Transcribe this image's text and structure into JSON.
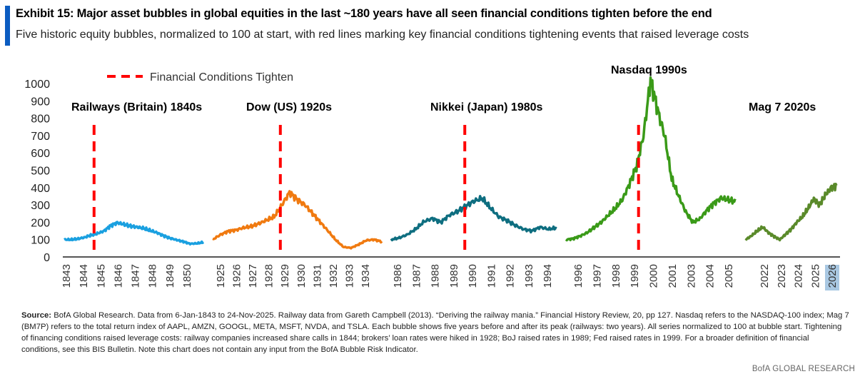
{
  "header": {
    "title": "Exhibit 15: Major asset bubbles in global equities in the last ~180 years have all seen financial conditions tighten before the end",
    "subtitle": "Five historic equity bubbles, normalized to 100 at start, with red lines marking key financial conditions tightening events that raised leverage costs"
  },
  "footer": {
    "source_label": "Source:",
    "source_text": " BofA Global Research. Data from 6-Jan-1843 to 24-Nov-2025. Railway data from Gareth Campbell (2013). “Deriving the railway mania.” Financial History Review, 20, pp 127. Nasdaq refers to the NASDAQ-100 index; Mag 7 (BM7P) refers to the total return index of AAPL, AMZN, GOOGL, META, MSFT, NVDA, and TSLA. Each bubble shows five years before and after its peak (railways: two years). All series normalized to 100 at bubble start. Tightening of financing conditions raised leverage costs: railway companies increased share calls in 1844; brokers’ loan rates were hiked in 1928; BoJ raised rates in 1989; Fed raised rates in 1999. For a broader definition of financial conditions, see this BIS Bulletin. Note this chart does not contain any input from the BofA Bubble Risk Indicator.",
    "brand": "BofA GLOBAL RESEARCH"
  },
  "chart_data": {
    "type": "line",
    "title": "Exhibit 15: Major asset bubbles in global equities in the last ~180 years have all seen financial conditions tighten before the end",
    "ylabel": "",
    "xlabel": "",
    "ylim": [
      0,
      1000
    ],
    "yticks": [
      0,
      100,
      200,
      300,
      400,
      500,
      600,
      700,
      800,
      900,
      1000
    ],
    "legend": {
      "label": "Financial Conditions Tighten",
      "placement": "top-left",
      "color": "#ff0000"
    },
    "grid": false,
    "series": [
      {
        "name": "Railways (Britain) 1840s",
        "color": "#1aa0e0",
        "ticks": [
          "1843",
          "1844",
          "1845",
          "1846",
          "1847",
          "1848",
          "1849",
          "1850"
        ],
        "values": [
          100,
          100,
          104,
          112,
          125,
          135,
          150,
          180,
          198,
          188,
          178,
          172,
          165,
          152,
          140,
          122,
          108,
          98,
          88,
          76,
          78,
          85
        ],
        "event_index": 4.5
      },
      {
        "name": "Dow (US) 1920s",
        "color": "#f07a10",
        "ticks": [
          "1925",
          "1926",
          "1927",
          "1928",
          "1929",
          "1930",
          "1931",
          "1932",
          "1933",
          "1934"
        ],
        "values": [
          100,
          128,
          148,
          155,
          168,
          176,
          192,
          212,
          232,
          300,
          372,
          330,
          300,
          250,
          200,
          150,
          98,
          58,
          52,
          72,
          96,
          100,
          88
        ],
        "event_index": 8.8
      },
      {
        "name": "Nikkei (Japan) 1980s",
        "color": "#0e6e80",
        "ticks": [
          "1986",
          "1987",
          "1988",
          "1989",
          "1990",
          "1991",
          "1992",
          "1993",
          "1994"
        ],
        "values": [
          100,
          110,
          130,
          162,
          205,
          222,
          200,
          240,
          262,
          292,
          322,
          338,
          282,
          232,
          210,
          182,
          160,
          150,
          172,
          160,
          168
        ],
        "event_index": 8.9
      },
      {
        "name": "Nasdaq 1990s",
        "color": "#3a9a18",
        "ticks": [
          "1996",
          "1997",
          "1998",
          "1999",
          "2000",
          "2001",
          "2003",
          "2004",
          "2005"
        ],
        "values": [
          100,
          105,
          120,
          140,
          170,
          200,
          240,
          280,
          330,
          420,
          520,
          700,
          1020,
          850,
          700,
          450,
          350,
          260,
          200,
          220,
          270,
          310,
          340,
          330,
          320
        ],
        "event_index": 10.3
      },
      {
        "name": "Mag 7 2020s",
        "color": "#5a8a2a",
        "ticks": [
          "2022",
          "2023",
          "2024",
          "2025",
          "2026"
        ],
        "values": [
          100,
          122,
          150,
          172,
          140,
          118,
          100,
          130,
          160,
          200,
          232,
          280,
          335,
          300,
          355,
          398,
          412
        ],
        "event_index": null
      }
    ]
  }
}
